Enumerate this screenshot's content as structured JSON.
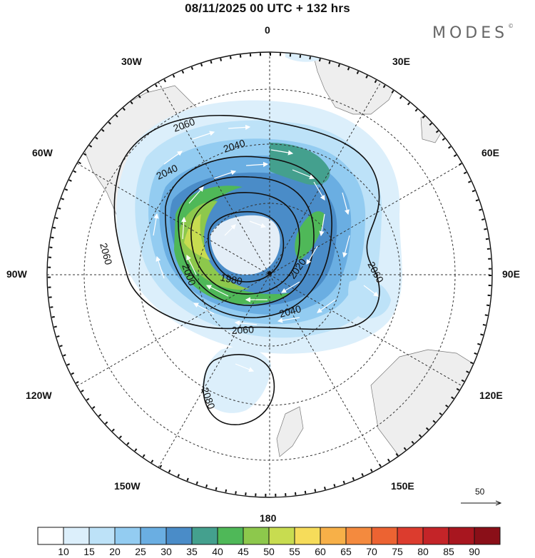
{
  "title": "08/11/2025  00 UTC  + 132 hrs",
  "brand": "MODES",
  "brand_mark": "©",
  "lon_labels": {
    "n": "0",
    "s": "180",
    "w": "90W",
    "e": "90E",
    "nw1": "30W",
    "nw2": "60W",
    "ne1": "30E",
    "ne2": "60E",
    "sw1": "120W",
    "sw2": "150W",
    "se1": "120E",
    "se2": "150E"
  },
  "contours": {
    "c1980": "1980",
    "c2000": "2000",
    "c2020": "2020",
    "c2040a": "2040",
    "c2040b": "2040",
    "c2040c": "2040",
    "c2060a": "2060",
    "c2060b": "2060",
    "c2060c": "2060",
    "c2060d": "2060",
    "c2080": "2080"
  },
  "wind_scale_label": "50",
  "colorbar": {
    "colors": [
      "#ffffff",
      "#dceffb",
      "#bde2f8",
      "#93ccf1",
      "#6aaee2",
      "#4a8cc8",
      "#44a08e",
      "#4fb858",
      "#8dc84c",
      "#c8dc50",
      "#f6dc5a",
      "#f7b048",
      "#f48a3e",
      "#ec6332",
      "#dc3c2e",
      "#c42428",
      "#a8161f",
      "#8a0f18"
    ],
    "ticks": [
      "10",
      "15",
      "20",
      "25",
      "30",
      "35",
      "40",
      "45",
      "50",
      "55",
      "60",
      "65",
      "70",
      "75",
      "80",
      "85",
      "90"
    ]
  }
}
